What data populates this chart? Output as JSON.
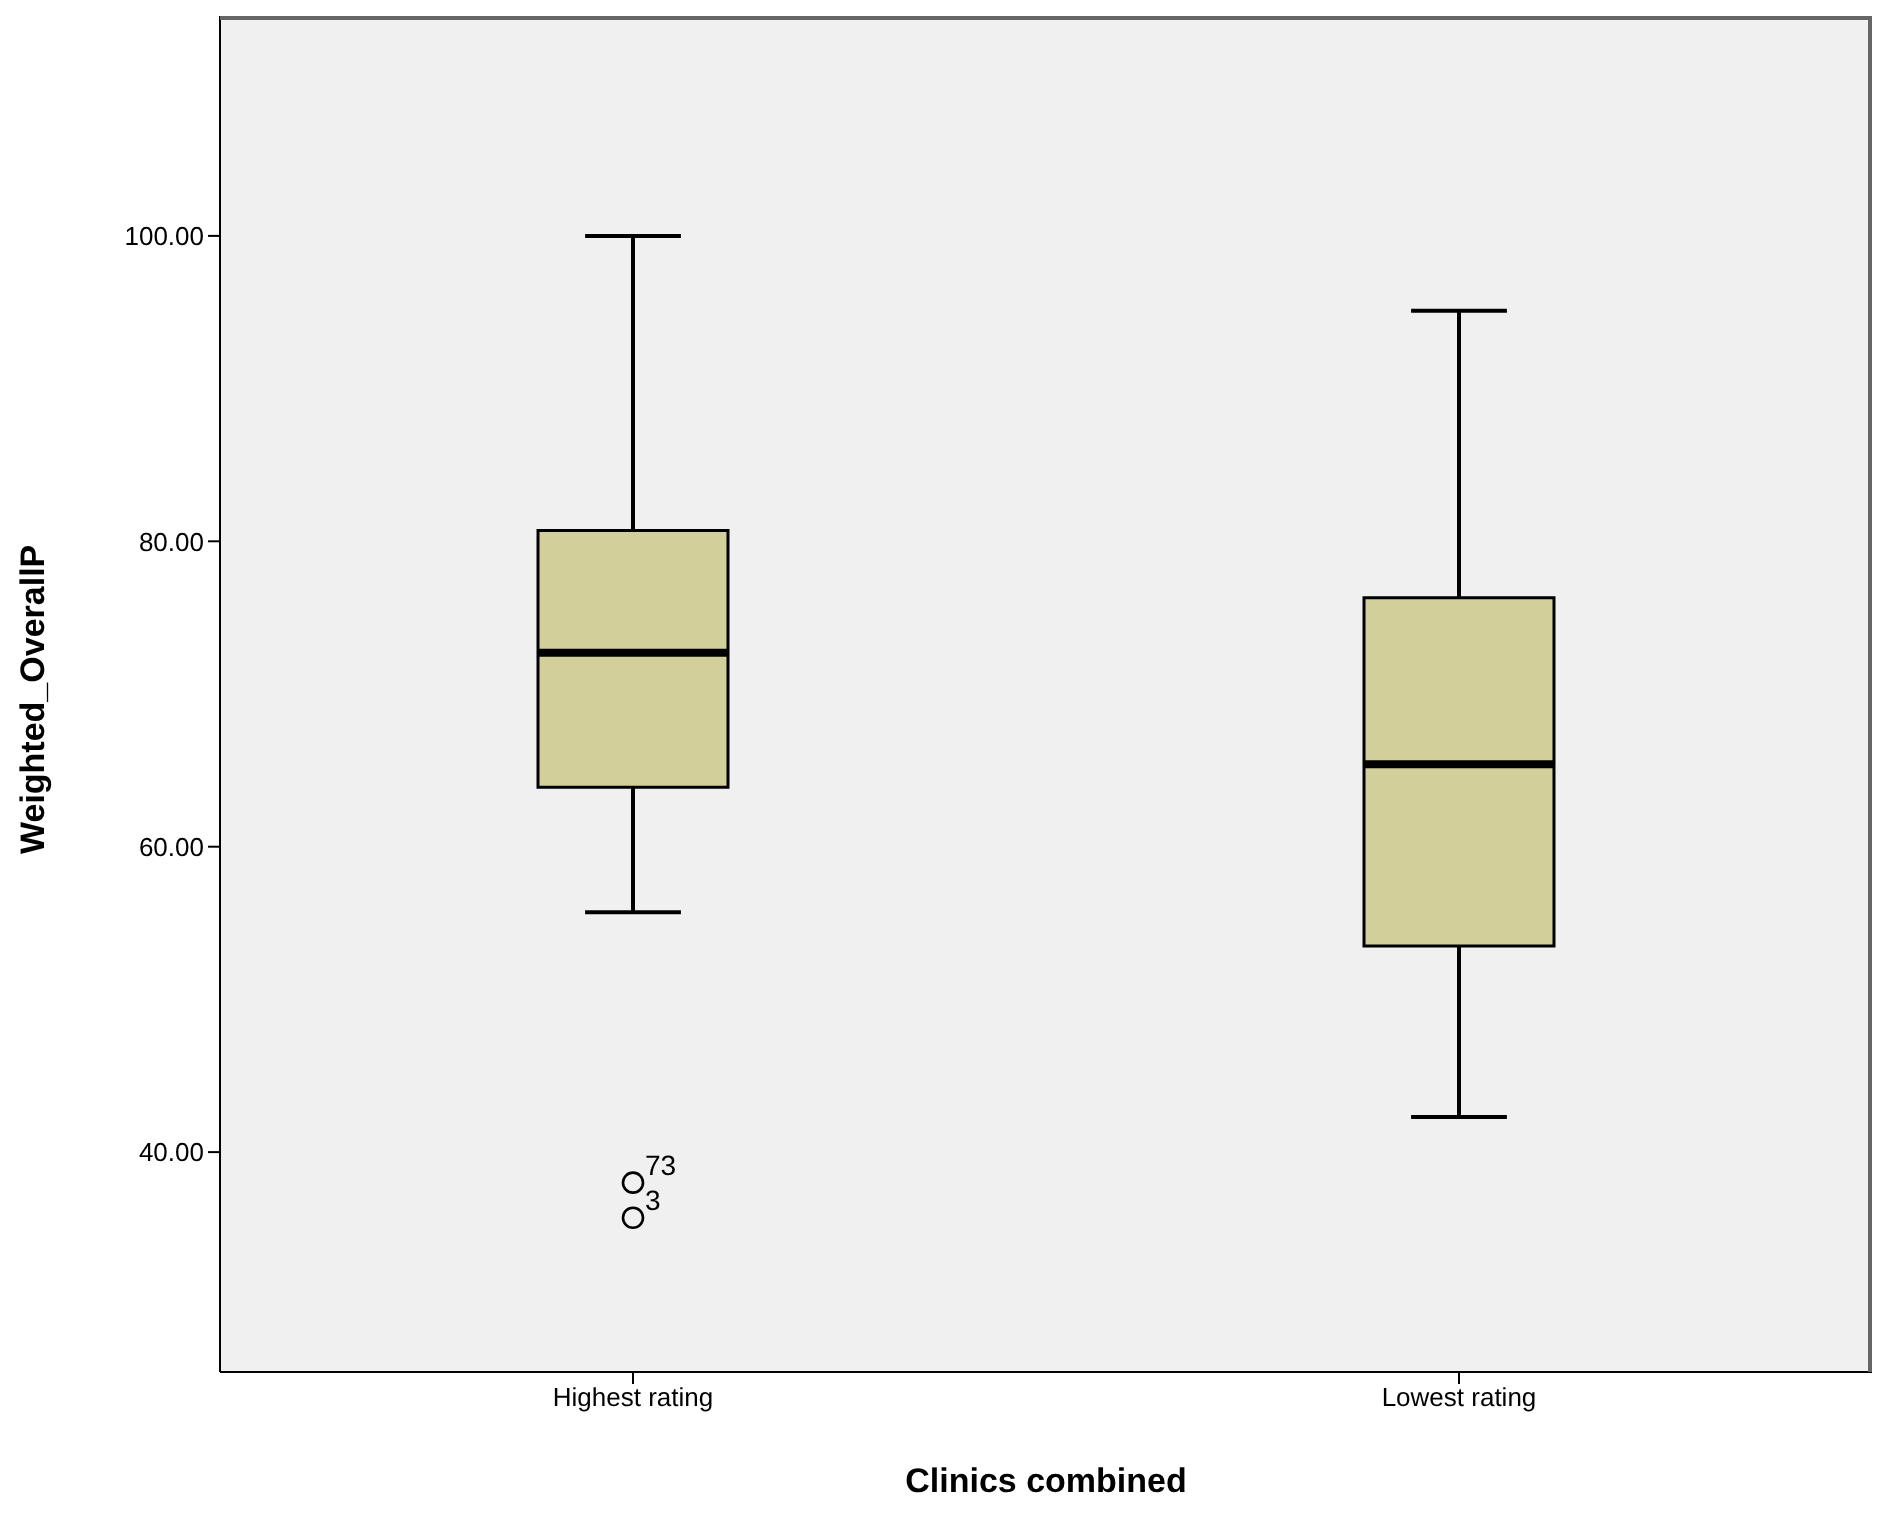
{
  "chart_data": {
    "type": "box",
    "xlabel": "Clinics combined",
    "ylabel": "Weighted_OverallP",
    "categories": [
      "Highest rating",
      "Lowest rating"
    ],
    "series": [
      {
        "color": "#d3cf9a",
        "boxes": [
          {
            "low": 55.7,
            "q1": 63.9,
            "median": 72.7,
            "q3": 80.7,
            "high": 100,
            "outliers": [
              38.0,
              35.7
            ]
          },
          {
            "low": 42.3,
            "q1": 53.5,
            "median": 65.4,
            "q3": 76.3,
            "high": 95.1
          }
        ]
      }
    ],
    "ylim": [
      25.6,
      114.4
    ],
    "yticks": [
      {
        "value": 40,
        "label": "40.00"
      },
      {
        "value": 60,
        "label": "60.00"
      },
      {
        "value": 80,
        "label": "80.00"
      },
      {
        "value": 100,
        "label": "100.00"
      }
    ],
    "grid": false,
    "annotations": [
      "73",
      "3"
    ]
  }
}
